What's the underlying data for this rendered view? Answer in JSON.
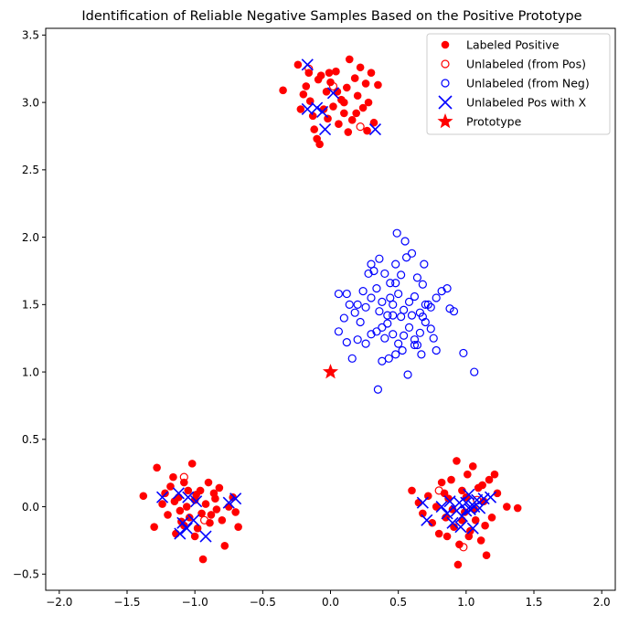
{
  "chart_data": {
    "type": "scatter",
    "title": "Identification of Reliable Negative Samples Based on the Positive Prototype",
    "xlabel": "",
    "ylabel": "",
    "xlim": [
      -2.1,
      2.1
    ],
    "ylim": [
      -0.62,
      3.55
    ],
    "xticks": [
      -2.0,
      -1.5,
      -1.0,
      -0.5,
      0.0,
      0.5,
      1.0,
      1.5,
      2.0
    ],
    "xtick_labels": [
      "−2.0",
      "−1.5",
      "−1.0",
      "−0.5",
      "0.0",
      "0.5",
      "1.0",
      "1.5",
      "2.0"
    ],
    "yticks": [
      -0.5,
      0.0,
      0.5,
      1.0,
      1.5,
      2.0,
      2.5,
      3.0,
      3.5
    ],
    "ytick_labels": [
      "−0.5",
      "0.0",
      "0.5",
      "1.0",
      "1.5",
      "2.0",
      "2.5",
      "3.0",
      "3.5"
    ],
    "grid": false,
    "legend_position": "top-right",
    "colors": {
      "red": "#ff0000",
      "blue": "#0000ff"
    },
    "series": [
      {
        "name": "Labeled Positive",
        "marker": "filled-circle",
        "color": "#ff0000",
        "points": [
          [
            -0.35,
            3.09
          ],
          [
            -0.24,
            3.28
          ],
          [
            -0.2,
            3.06
          ],
          [
            -0.18,
            3.12
          ],
          [
            -0.15,
            3.01
          ],
          [
            -0.13,
            2.9
          ],
          [
            -0.12,
            2.8
          ],
          [
            -0.1,
            2.73
          ],
          [
            -0.08,
            2.69
          ],
          [
            -0.07,
            3.2
          ],
          [
            -0.05,
            2.95
          ],
          [
            -0.03,
            3.08
          ],
          [
            -0.02,
            2.88
          ],
          [
            0.0,
            3.15
          ],
          [
            0.02,
            2.97
          ],
          [
            0.04,
            3.23
          ],
          [
            0.06,
            2.84
          ],
          [
            0.08,
            3.02
          ],
          [
            0.1,
            2.92
          ],
          [
            0.12,
            3.11
          ],
          [
            0.14,
            3.32
          ],
          [
            0.16,
            2.87
          ],
          [
            0.18,
            3.18
          ],
          [
            0.2,
            3.05
          ],
          [
            0.22,
            3.26
          ],
          [
            0.24,
            2.96
          ],
          [
            0.26,
            3.14
          ],
          [
            0.28,
            3.0
          ],
          [
            0.3,
            3.22
          ],
          [
            0.32,
            2.85
          ],
          [
            0.35,
            3.13
          ],
          [
            -0.22,
            2.95
          ],
          [
            -0.16,
            3.22
          ],
          [
            0.05,
            3.08
          ],
          [
            0.13,
            2.78
          ],
          [
            -0.09,
            3.17
          ],
          [
            0.27,
            2.79
          ],
          [
            0.19,
            2.92
          ],
          [
            -0.01,
            3.22
          ],
          [
            0.1,
            3.0
          ],
          [
            -1.38,
            0.08
          ],
          [
            -1.3,
            -0.15
          ],
          [
            -1.28,
            0.29
          ],
          [
            -1.24,
            0.02
          ],
          [
            -1.2,
            -0.06
          ],
          [
            -1.18,
            0.15
          ],
          [
            -1.16,
            0.22
          ],
          [
            -1.14,
            -0.2
          ],
          [
            -1.12,
            0.07
          ],
          [
            -1.1,
            -0.11
          ],
          [
            -1.08,
            0.18
          ],
          [
            -1.06,
            0.0
          ],
          [
            -1.04,
            -0.08
          ],
          [
            -1.02,
            0.32
          ],
          [
            -1.0,
            0.05
          ],
          [
            -0.98,
            -0.16
          ],
          [
            -0.96,
            0.12
          ],
          [
            -0.94,
            -0.39
          ],
          [
            -0.92,
            0.02
          ],
          [
            -0.9,
            0.18
          ],
          [
            -0.88,
            -0.06
          ],
          [
            -0.86,
            0.1
          ],
          [
            -0.84,
            -0.02
          ],
          [
            -0.82,
            0.14
          ],
          [
            -0.8,
            -0.1
          ],
          [
            -0.78,
            -0.29
          ],
          [
            -0.75,
            0.0
          ],
          [
            -0.72,
            0.07
          ],
          [
            -0.68,
            -0.15
          ],
          [
            -0.7,
            -0.04
          ],
          [
            -1.22,
            0.1
          ],
          [
            -1.15,
            0.04
          ],
          [
            -1.05,
            0.12
          ],
          [
            -0.95,
            -0.05
          ],
          [
            -0.85,
            0.06
          ],
          [
            -1.11,
            -0.03
          ],
          [
            -0.99,
            0.09
          ],
          [
            -0.89,
            -0.12
          ],
          [
            -1.0,
            -0.22
          ],
          [
            -1.08,
            -0.14
          ],
          [
            0.6,
            0.12
          ],
          [
            0.65,
            0.03
          ],
          [
            0.68,
            -0.05
          ],
          [
            0.72,
            0.08
          ],
          [
            0.75,
            -0.12
          ],
          [
            0.78,
            0.0
          ],
          [
            0.8,
            -0.2
          ],
          [
            0.82,
            0.18
          ],
          [
            0.85,
            -0.08
          ],
          [
            0.87,
            0.06
          ],
          [
            0.89,
            0.2
          ],
          [
            0.91,
            -0.15
          ],
          [
            0.93,
            0.34
          ],
          [
            0.95,
            -0.28
          ],
          [
            0.97,
            0.12
          ],
          [
            0.99,
            -0.04
          ],
          [
            1.01,
            0.24
          ],
          [
            1.03,
            -0.18
          ],
          [
            1.05,
            0.3
          ],
          [
            1.07,
            -0.1
          ],
          [
            1.09,
            0.14
          ],
          [
            1.11,
            -0.25
          ],
          [
            1.13,
            0.04
          ],
          [
            1.15,
            -0.36
          ],
          [
            1.17,
            0.2
          ],
          [
            1.19,
            -0.08
          ],
          [
            1.21,
            0.24
          ],
          [
            1.23,
            0.1
          ],
          [
            1.3,
            0.0
          ],
          [
            1.38,
            -0.01
          ],
          [
            0.94,
            -0.43
          ],
          [
            0.86,
            -0.22
          ],
          [
            1.0,
            0.07
          ],
          [
            1.06,
            -0.02
          ],
          [
            0.84,
            0.1
          ],
          [
            1.12,
            0.16
          ],
          [
            0.97,
            -0.1
          ],
          [
            1.02,
            -0.22
          ],
          [
            0.9,
            -0.02
          ],
          [
            1.14,
            -0.14
          ]
        ]
      },
      {
        "name": "Unlabeled (from Pos)",
        "marker": "open-circle",
        "color": "#ff0000",
        "points": [
          [
            -0.16,
            3.25
          ],
          [
            0.02,
            3.12
          ],
          [
            0.22,
            2.82
          ],
          [
            -1.08,
            0.22
          ],
          [
            -0.93,
            -0.1
          ],
          [
            0.8,
            0.12
          ],
          [
            1.08,
            0.05
          ],
          [
            0.98,
            -0.3
          ]
        ]
      },
      {
        "name": "Unlabeled (from Neg)",
        "marker": "open-circle",
        "color": "#0000ff",
        "points": [
          [
            0.35,
            0.87
          ],
          [
            0.38,
            1.08
          ],
          [
            0.43,
            1.1
          ],
          [
            0.48,
            1.13
          ],
          [
            0.53,
            1.16
          ],
          [
            0.57,
            0.98
          ],
          [
            0.62,
            1.2
          ],
          [
            0.67,
            1.13
          ],
          [
            0.78,
            1.16
          ],
          [
            0.98,
            1.14
          ],
          [
            1.06,
            1.0
          ],
          [
            0.16,
            1.1
          ],
          [
            0.12,
            1.22
          ],
          [
            0.2,
            1.24
          ],
          [
            0.26,
            1.21
          ],
          [
            0.3,
            1.28
          ],
          [
            0.34,
            1.3
          ],
          [
            0.38,
            1.33
          ],
          [
            0.42,
            1.36
          ],
          [
            0.46,
            1.28
          ],
          [
            0.5,
            1.21
          ],
          [
            0.54,
            1.27
          ],
          [
            0.58,
            1.33
          ],
          [
            0.62,
            1.24
          ],
          [
            0.66,
            1.29
          ],
          [
            0.7,
            1.37
          ],
          [
            0.74,
            1.32
          ],
          [
            0.06,
            1.3
          ],
          [
            0.1,
            1.4
          ],
          [
            0.14,
            1.5
          ],
          [
            0.18,
            1.44
          ],
          [
            0.22,
            1.37
          ],
          [
            0.26,
            1.48
          ],
          [
            0.3,
            1.55
          ],
          [
            0.34,
            1.62
          ],
          [
            0.38,
            1.52
          ],
          [
            0.42,
            1.42
          ],
          [
            0.46,
            1.5
          ],
          [
            0.5,
            1.58
          ],
          [
            0.54,
            1.46
          ],
          [
            0.58,
            1.52
          ],
          [
            0.62,
            1.56
          ],
          [
            0.66,
            1.44
          ],
          [
            0.7,
            1.5
          ],
          [
            0.74,
            1.48
          ],
          [
            0.78,
            1.55
          ],
          [
            0.82,
            1.6
          ],
          [
            0.86,
            1.62
          ],
          [
            0.88,
            1.47
          ],
          [
            0.91,
            1.45
          ],
          [
            0.06,
            1.58
          ],
          [
            0.12,
            1.58
          ],
          [
            0.2,
            1.5
          ],
          [
            0.28,
            1.73
          ],
          [
            0.32,
            1.75
          ],
          [
            0.36,
            1.84
          ],
          [
            0.4,
            1.73
          ],
          [
            0.44,
            1.66
          ],
          [
            0.48,
            1.8
          ],
          [
            0.52,
            1.72
          ],
          [
            0.56,
            1.85
          ],
          [
            0.6,
            1.88
          ],
          [
            0.64,
            1.7
          ],
          [
            0.68,
            1.65
          ],
          [
            0.72,
            1.5
          ],
          [
            0.55,
            1.97
          ],
          [
            0.49,
            2.03
          ],
          [
            0.69,
            1.8
          ],
          [
            0.4,
            1.25
          ],
          [
            0.46,
            1.42
          ],
          [
            0.36,
            1.45
          ],
          [
            0.44,
            1.55
          ],
          [
            0.52,
            1.41
          ],
          [
            0.6,
            1.42
          ],
          [
            0.68,
            1.41
          ],
          [
            0.3,
            1.8
          ],
          [
            0.24,
            1.6
          ],
          [
            0.48,
            1.66
          ],
          [
            0.64,
            1.2
          ],
          [
            0.76,
            1.25
          ]
        ]
      },
      {
        "name": "Unlabeled Pos with X",
        "marker": "x",
        "color": "#0000ff",
        "points": [
          [
            -0.17,
            3.28
          ],
          [
            -0.17,
            2.95
          ],
          [
            -0.1,
            2.96
          ],
          [
            -0.06,
            2.93
          ],
          [
            -0.04,
            2.8
          ],
          [
            0.02,
            3.07
          ],
          [
            0.33,
            2.8
          ],
          [
            -1.24,
            0.07
          ],
          [
            -1.12,
            0.1
          ],
          [
            -1.11,
            -0.2
          ],
          [
            -1.09,
            -0.12
          ],
          [
            -1.06,
            -0.16
          ],
          [
            -1.05,
            0.07
          ],
          [
            -1.01,
            -0.1
          ],
          [
            -0.99,
            0.04
          ],
          [
            -0.92,
            -0.22
          ],
          [
            -0.75,
            0.03
          ],
          [
            -0.7,
            0.06
          ],
          [
            0.68,
            0.03
          ],
          [
            0.71,
            -0.1
          ],
          [
            0.82,
            0.0
          ],
          [
            0.86,
            -0.05
          ],
          [
            0.9,
            -0.12
          ],
          [
            0.93,
            -0.03
          ],
          [
            0.95,
            0.03
          ],
          [
            0.97,
            -0.07
          ],
          [
            1.0,
            0.03
          ],
          [
            1.02,
            0.09
          ],
          [
            1.03,
            -0.02
          ],
          [
            1.05,
            -0.16
          ],
          [
            1.06,
            0.0
          ],
          [
            1.08,
            0.05
          ],
          [
            1.1,
            -0.01
          ],
          [
            1.13,
            0.06
          ],
          [
            1.18,
            0.07
          ],
          [
            0.96,
            -0.15
          ],
          [
            1.0,
            -0.03
          ],
          [
            0.88,
            0.04
          ]
        ]
      },
      {
        "name": "Prototype",
        "marker": "star",
        "color": "#ff0000",
        "points": [
          [
            0.0,
            1.0
          ]
        ]
      }
    ]
  }
}
